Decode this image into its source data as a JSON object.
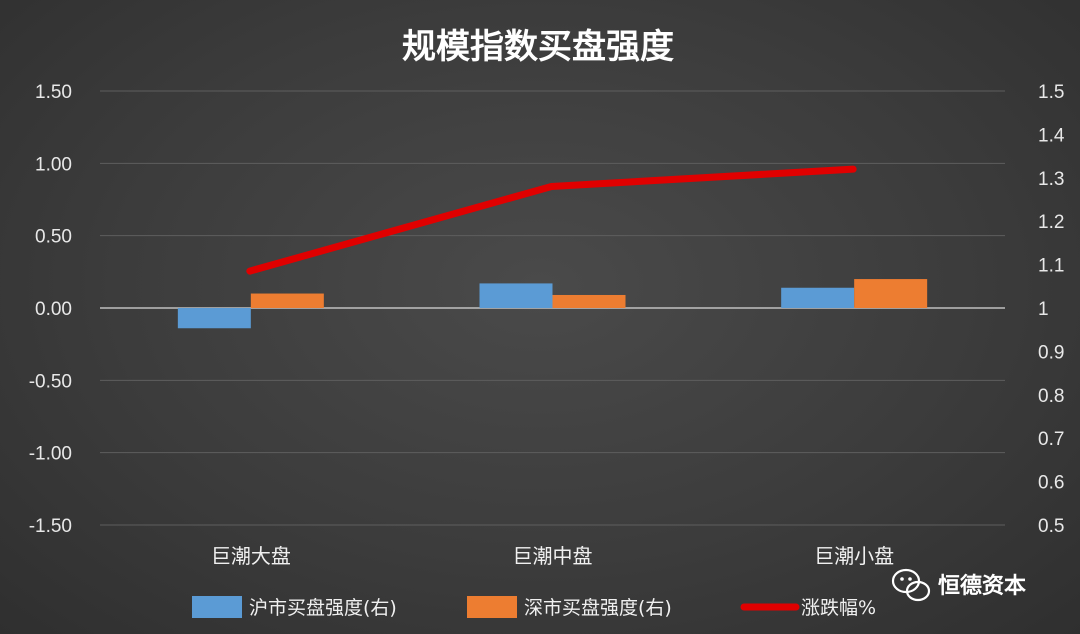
{
  "chart_data": {
    "type": "bar",
    "title": "规模指数买盘强度",
    "categories": [
      "巨潮大盘",
      "巨潮中盘",
      "巨潮小盘"
    ],
    "series": [
      {
        "name": "沪市买盘强度(右)",
        "type": "bar",
        "axis": "left",
        "color": "#5b9bd5",
        "values": [
          -0.14,
          0.17,
          0.14
        ]
      },
      {
        "name": "深市买盘强度(右)",
        "type": "bar",
        "axis": "left",
        "color": "#ed7d31",
        "values": [
          0.1,
          0.09,
          0.2
        ]
      },
      {
        "name": "涨跌幅%",
        "type": "line",
        "axis": "right",
        "color": "#e00000",
        "values": [
          1.085,
          1.28,
          1.32
        ]
      }
    ],
    "ylim": [
      -1.5,
      1.5
    ],
    "y_ticks": [
      "1.50",
      "1.00",
      "0.50",
      "0.00",
      "-0.50",
      "-1.00",
      "-1.50"
    ],
    "y2lim": [
      0.5,
      1.5
    ],
    "y2_ticks": [
      "1.5",
      "1.4",
      "1.3",
      "1.2",
      "1.1",
      "1",
      "0.9",
      "0.8",
      "0.7",
      "0.6",
      "0.5"
    ],
    "grid": true,
    "legend": "bottom"
  },
  "watermark": {
    "text": "恒德资本"
  }
}
